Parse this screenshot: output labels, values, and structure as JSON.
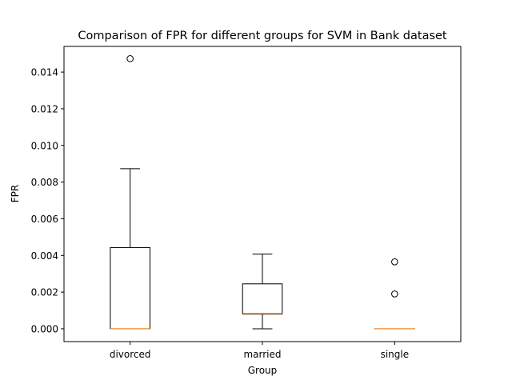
{
  "chart_data": {
    "type": "boxplot",
    "title": "Comparison of FPR for different groups for SVM in Bank dataset",
    "xlabel": "Group",
    "ylabel": "FPR",
    "ylim": [
      -0.0007,
      0.0154
    ],
    "yticks": [
      0.0,
      0.002,
      0.004,
      0.006,
      0.008,
      0.01,
      0.012,
      0.014
    ],
    "ytick_labels": [
      "0.000",
      "0.002",
      "0.004",
      "0.006",
      "0.008",
      "0.010",
      "0.012",
      "0.014"
    ],
    "grid": false,
    "colors": {
      "box": "#000000",
      "median": "#ff7f0e",
      "whisker": "#000000",
      "flier": "#000000"
    },
    "groups": [
      {
        "name": "divorced",
        "whisker_low": 0.0,
        "q1": 0.0,
        "median": 0.0,
        "q3": 0.00443,
        "whisker_high": 0.00873,
        "fliers": [
          0.01473
        ]
      },
      {
        "name": "married",
        "whisker_low": 0.0,
        "q1": 0.0008,
        "median": 0.00083,
        "q3": 0.00245,
        "whisker_high": 0.00407,
        "fliers": []
      },
      {
        "name": "single",
        "whisker_low": 0.0,
        "q1": 0.0,
        "median": 0.0,
        "q3": 0.0,
        "whisker_high": 0.0,
        "fliers": [
          0.0019,
          0.00365
        ]
      }
    ]
  }
}
